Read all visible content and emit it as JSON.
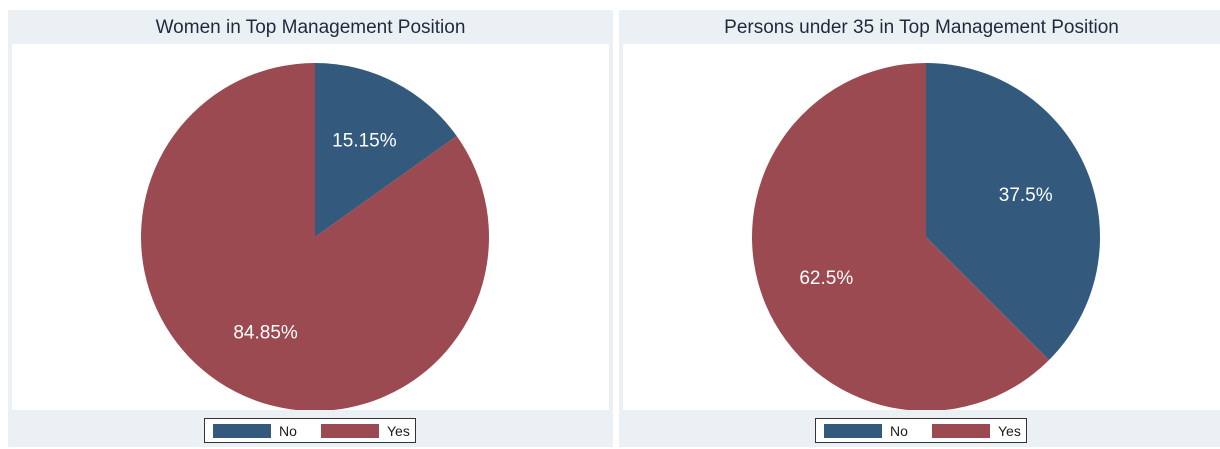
{
  "chart_data": [
    {
      "type": "pie",
      "title": "Women in Top Management Position",
      "categories": [
        "No",
        "Yes"
      ],
      "values": [
        15.15,
        84.85
      ],
      "labels": [
        "15.15%",
        "84.85%"
      ],
      "colors": [
        "#335a7d",
        "#9a4a50"
      ],
      "legend": {
        "position": "bottom",
        "entries": [
          "No",
          "Yes"
        ]
      }
    },
    {
      "type": "pie",
      "title": "Persons under 35 in Top Management Position",
      "categories": [
        "No",
        "Yes"
      ],
      "values": [
        37.5,
        62.5
      ],
      "labels": [
        "37.5%",
        "62.5%"
      ],
      "colors": [
        "#335a7d",
        "#9a4a50"
      ],
      "legend": {
        "position": "bottom",
        "entries": [
          "No",
          "Yes"
        ]
      }
    }
  ]
}
